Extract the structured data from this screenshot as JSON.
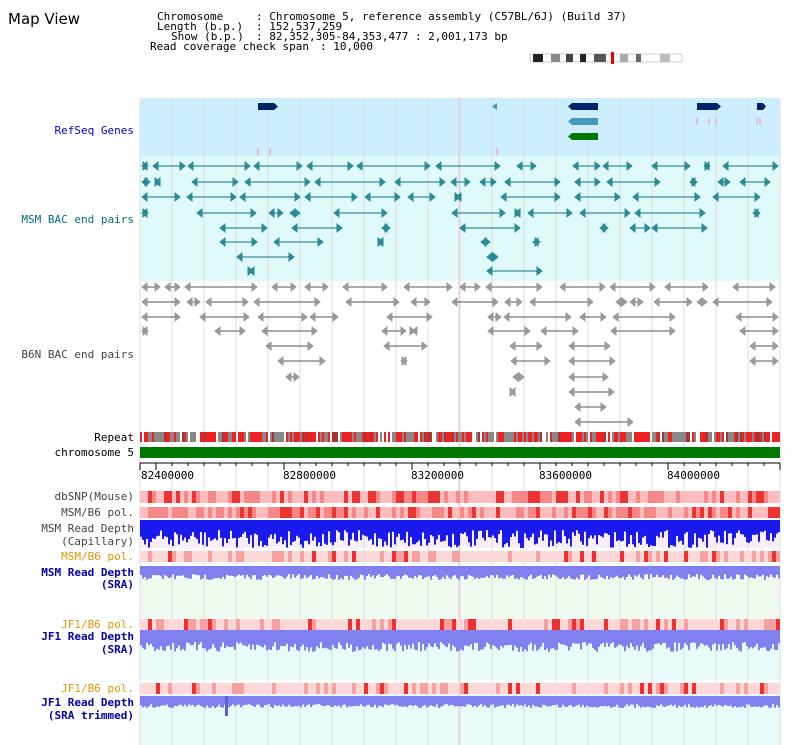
{
  "title": "Map View",
  "info": {
    "chromosome_key": "Chromosome",
    "chromosome_val": ": Chromosome 5, reference assembly (C57BL/6J) (Build 37)",
    "length_key": "Length (b.p.)",
    "length_val": ": 152,537,259",
    "show_key": "Show (b.p.)",
    "show_val": ": 82,352,305-84,353,477 : 2,001,173 bp",
    "span_key": "Read coverage check span",
    "span_val": ": 10,000"
  },
  "tracks": {
    "refseq": "RefSeq Genes",
    "msm_bac": "MSM BAC end pairs",
    "b6n_bac": "B6N BAC end pairs",
    "repeat": "Repeat",
    "chromosome": "chromosome 5",
    "dbsnp": "dbSNP(Mouse)",
    "msm_pol1": "MSM/B6 pol.",
    "msm_depth_cap_1": "MSM Read Depth",
    "msm_depth_cap_2": "(Capillary)",
    "msm_pol2": "MSM/B6 pol.",
    "msm_depth_sra_1": "MSM Read Depth",
    "msm_depth_sra_2": "(SRA)",
    "jf1_pol1": "JF1/B6 pol.",
    "jf1_depth_sra_1": "JF1 Read Depth",
    "jf1_depth_sra_2": "(SRA)",
    "jf1_pol2": "JF1/B6 pol.",
    "jf1_depth_trim_1": "JF1 Read Depth",
    "jf1_depth_trim_2": "(SRA trimmed)"
  },
  "ruler": {
    "ticks": [
      "82400000",
      "82800000",
      "83200000",
      "83600000",
      "84000000"
    ]
  },
  "colors": {
    "refseq_bg": "#cceeff",
    "msm_bg": "#e0fafa",
    "b6n_bg": "#ffffff",
    "depth_blue": "#1a1aee",
    "sra_blue": "#8080ee",
    "pol_red": "#ee2020",
    "chromosome_green": "#007700",
    "gene_navy": "#002266",
    "gene_teal": "#4499bb",
    "gene_green": "#007700"
  }
}
